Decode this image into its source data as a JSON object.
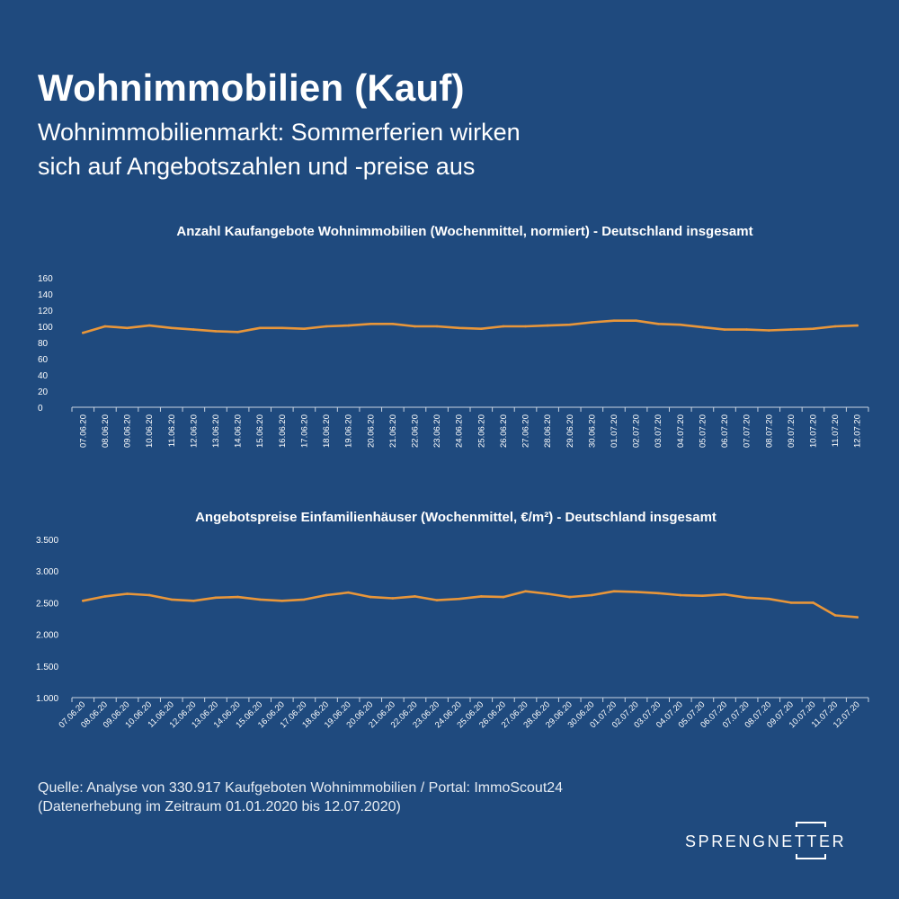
{
  "header": {
    "title": "Wohnimmobilien (Kauf)",
    "subtitle_line1": "Wohnimmobilienmarkt: Sommerferien wirken",
    "subtitle_line2": "sich auf Angebotszahlen und -preise aus"
  },
  "colors": {
    "background": "#1f4a7e",
    "line": "#e8963a",
    "axis": "#c9d4e2",
    "text": "#ffffff"
  },
  "chart_data": [
    {
      "type": "line",
      "title": "Anzahl Kaufangebote Wohnimmobilien (Wochenmittel, normiert) - Deutschland insgesamt",
      "xlabel": "",
      "ylabel": "",
      "ylim": [
        0,
        160
      ],
      "yticks": [
        0,
        20,
        40,
        60,
        80,
        100,
        120,
        140,
        160
      ],
      "ytick_labels": [
        "0",
        "20",
        "40",
        "60",
        "80",
        "100",
        "120",
        "140",
        "160"
      ],
      "grid": false,
      "categories": [
        "07.06.20",
        "08.06.20",
        "09.06.20",
        "10.06.20",
        "11.06.20",
        "12.06.20",
        "13.06.20",
        "14.06.20",
        "15.06.20",
        "16.06.20",
        "17.06.20",
        "18.06.20",
        "19.06.20",
        "20.06.20",
        "21.06.20",
        "22.06.20",
        "23.06.20",
        "24.06.20",
        "25.06.20",
        "26.06.20",
        "27.06.20",
        "28.06.20",
        "29.06.20",
        "30.06.20",
        "01.07.20",
        "02.07.20",
        "03.07.20",
        "04.07.20",
        "05.07.20",
        "06.07.20",
        "07.07.20",
        "08.07.20",
        "09.07.20",
        "10.07.20",
        "11.07.20",
        "12.07.20"
      ],
      "values": [
        92,
        100,
        98,
        101,
        98,
        96,
        94,
        93,
        98,
        98,
        97,
        100,
        101,
        103,
        103,
        100,
        100,
        98,
        97,
        100,
        100,
        101,
        102,
        105,
        107,
        107,
        103,
        102,
        99,
        96,
        96,
        95,
        96,
        97,
        100,
        101
      ]
    },
    {
      "type": "line",
      "title": "Angebotspreise Einfamilienhäuser (Wochenmittel, €/m²) - Deutschland insgesamt",
      "xlabel": "",
      "ylabel": "",
      "ylim": [
        1000,
        3500
      ],
      "yticks": [
        1000,
        1500,
        2000,
        2500,
        3000,
        3500
      ],
      "ytick_labels": [
        "1.000",
        "1.500",
        "2.000",
        "2.500",
        "3.000",
        "3.500"
      ],
      "grid": false,
      "categories": [
        "07.06.20",
        "08.06.20",
        "09.06.20",
        "10.06.20",
        "11.06.20",
        "12.06.20",
        "13.06.20",
        "14.06.20",
        "15.06.20",
        "16.06.20",
        "17.06.20",
        "18.06.20",
        "19.06.20",
        "20.06.20",
        "21.06.20",
        "22.06.20",
        "23.06.20",
        "24.06.20",
        "25.06.20",
        "26.06.20",
        "27.06.20",
        "28.06.20",
        "29.06.20",
        "30.06.20",
        "01.07.20",
        "02.07.20",
        "03.07.20",
        "04.07.20",
        "05.07.20",
        "06.07.20",
        "07.07.20",
        "08.07.20",
        "09.07.20",
        "10.07.20",
        "11.07.20",
        "12.07.20"
      ],
      "values": [
        2530,
        2600,
        2640,
        2620,
        2550,
        2530,
        2580,
        2590,
        2550,
        2530,
        2550,
        2620,
        2660,
        2590,
        2570,
        2600,
        2540,
        2560,
        2600,
        2590,
        2680,
        2640,
        2590,
        2620,
        2680,
        2670,
        2650,
        2620,
        2610,
        2630,
        2580,
        2560,
        2500,
        2500,
        2300,
        2270
      ]
    }
  ],
  "source": {
    "line1": "Quelle: Analyse von 330.917 Kaufgeboten Wohnimmobilien / Portal: ImmoScout24",
    "line2": "(Datenerhebung im Zeitraum 01.01.2020 bis 12.07.2020)"
  },
  "logo": {
    "text": "SPRENGNETTER",
    "icon": "bracket-logo-icon"
  }
}
